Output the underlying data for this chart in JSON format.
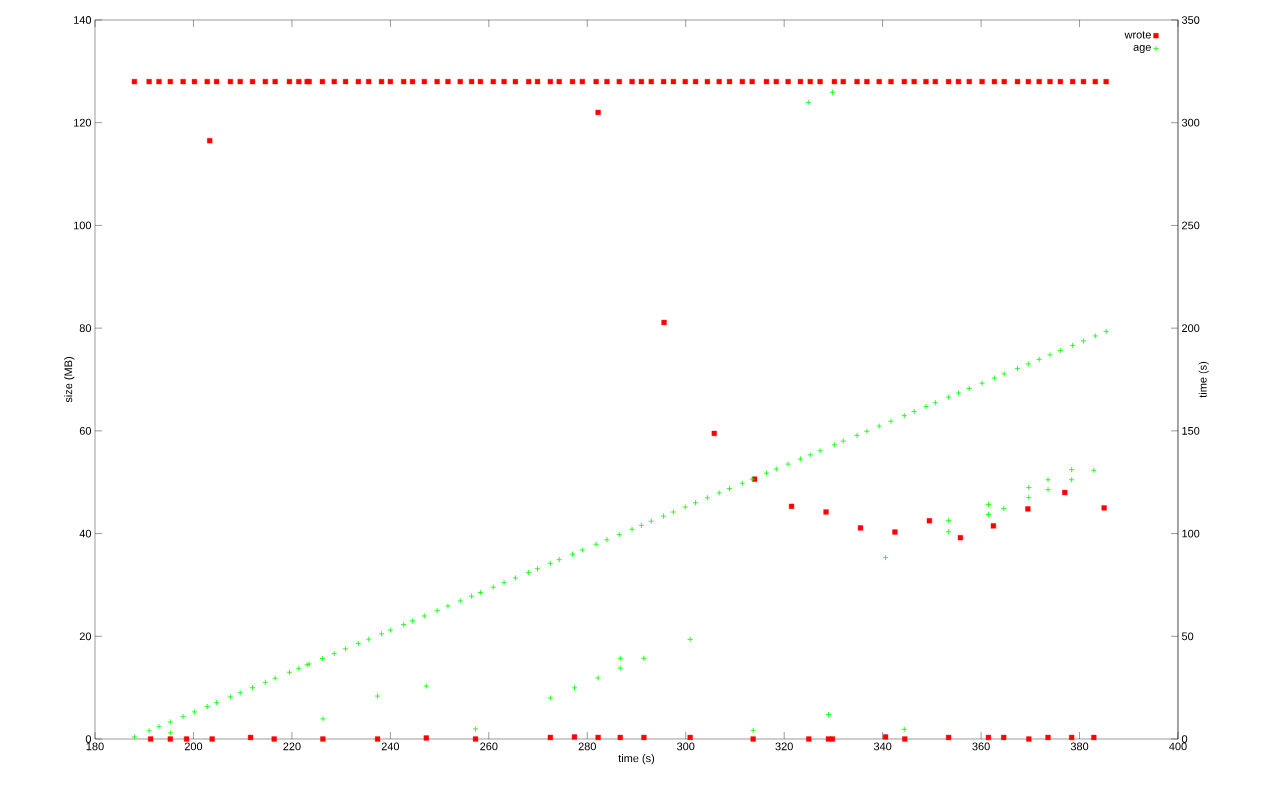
{
  "chart_data": {
    "type": "scatter",
    "xlabel": "time (s)",
    "ylabel": "size (MB)",
    "y2label": "time (s)",
    "xlim": [
      180,
      400
    ],
    "xticks": [
      180,
      200,
      220,
      240,
      260,
      280,
      300,
      320,
      340,
      360,
      380,
      400
    ],
    "ylim": [
      0,
      140
    ],
    "yticks": [
      0,
      20,
      40,
      60,
      80,
      100,
      120,
      140
    ],
    "y2lim": [
      0,
      350
    ],
    "y2ticks": [
      0,
      50,
      100,
      150,
      200,
      250,
      300,
      350
    ],
    "legend": "top right",
    "grid": false,
    "series": [
      {
        "name": "wrote",
        "color": "#ff0000",
        "marker": "square",
        "x": [
          188.0,
          191.0,
          193.0,
          195.3,
          197.9,
          200.2,
          202.8,
          204.7,
          207.5,
          209.5,
          212.0,
          214.6,
          216.6,
          219.5,
          221.4,
          223.1,
          223.5,
          226.2,
          228.6,
          230.9,
          233.5,
          235.6,
          238.2,
          240.0,
          242.7,
          244.5,
          246.9,
          249.5,
          251.7,
          254.2,
          256.5,
          258.3,
          260.9,
          263.1,
          265.4,
          268.1,
          269.9,
          272.5,
          274.3,
          277.0,
          279.0,
          281.8,
          284.0,
          286.5,
          289.1,
          291.0,
          293.0,
          295.5,
          297.5,
          299.9,
          302.0,
          304.4,
          306.8,
          308.9,
          311.5,
          313.5,
          316.4,
          318.4,
          320.8,
          323.3,
          325.3,
          327.3,
          330.2,
          332.0,
          334.8,
          336.8,
          339.3,
          341.7,
          344.4,
          346.4,
          348.8,
          350.7,
          353.4,
          355.4,
          357.6,
          360.2,
          362.7,
          364.7,
          367.4,
          369.6,
          371.8,
          374.0,
          376.1,
          378.6,
          380.8,
          383.2,
          385.4,
          203.3,
          282.2,
          295.6,
          305.8,
          314.0,
          321.5,
          328.5,
          335.5,
          342.5,
          349.5,
          355.8,
          362.5,
          369.5,
          377.0,
          385.0,
          191.3,
          195.3,
          198.6,
          203.8,
          211.6,
          216.4,
          226.3,
          237.4,
          247.3,
          257.3,
          272.5,
          277.4,
          282.2,
          286.7,
          291.5,
          300.9,
          313.7,
          325.0,
          329.0,
          329.8,
          340.6,
          344.5,
          353.4,
          361.5,
          364.6,
          369.7,
          373.6,
          378.4,
          382.9
        ],
        "values": [
          128,
          128,
          128,
          128,
          128,
          128,
          128,
          128,
          128,
          128,
          128,
          128,
          128,
          128,
          128,
          128,
          128,
          128,
          128,
          128,
          128,
          128,
          128,
          128,
          128,
          128,
          128,
          128,
          128,
          128,
          128,
          128,
          128,
          128,
          128,
          128,
          128,
          128,
          128,
          128,
          128,
          128,
          128,
          128,
          128,
          128,
          128,
          128,
          128,
          128,
          128,
          128,
          128,
          128,
          128,
          128,
          128,
          128,
          128,
          128,
          128,
          128,
          128,
          128,
          128,
          128,
          128,
          128,
          128,
          128,
          128,
          128,
          128,
          128,
          128,
          128,
          128,
          128,
          128,
          128,
          128,
          128,
          128,
          128,
          128,
          128,
          128,
          116.5,
          122.0,
          81.1,
          59.5,
          50.6,
          45.3,
          44.2,
          41.1,
          40.3,
          42.5,
          39.2,
          41.5,
          44.8,
          48.0,
          45.0,
          0,
          0,
          0,
          0,
          0.3,
          0,
          0,
          0,
          0.2,
          0,
          0.3,
          0.4,
          0.3,
          0.3,
          0.3,
          0.3,
          0,
          0,
          0,
          0,
          0.4,
          0,
          0.3,
          0.3,
          0.3,
          0,
          0.3,
          0.3,
          0.3
        ]
      },
      {
        "name": "age",
        "color": "#00ff00",
        "marker": "cross",
        "axis": "y2",
        "x": [
          188.0,
          191.0,
          193.0,
          195.3,
          197.9,
          200.2,
          202.8,
          204.7,
          207.5,
          209.5,
          212.0,
          214.6,
          216.6,
          219.5,
          221.4,
          223.1,
          223.5,
          226.2,
          228.6,
          230.9,
          233.5,
          235.6,
          238.2,
          240.0,
          242.7,
          244.5,
          246.9,
          249.5,
          251.7,
          254.2,
          256.5,
          258.3,
          260.9,
          263.1,
          265.4,
          268.1,
          269.9,
          272.5,
          274.3,
          277.0,
          279.0,
          281.8,
          284.0,
          286.5,
          289.1,
          291.0,
          293.0,
          295.5,
          297.5,
          299.9,
          302.0,
          304.4,
          306.8,
          308.9,
          311.5,
          313.5,
          316.4,
          318.4,
          320.8,
          323.3,
          325.3,
          327.3,
          330.2,
          332.0,
          334.8,
          336.8,
          339.3,
          341.7,
          344.4,
          346.4,
          348.8,
          350.7,
          353.4,
          355.4,
          357.6,
          360.2,
          362.7,
          364.7,
          367.4,
          369.6,
          371.8,
          374.0,
          376.1,
          378.6,
          380.8,
          383.2,
          385.4,
          195.3,
          226.3,
          237.4,
          247.3,
          257.3,
          272.5,
          277.4,
          282.2,
          286.7,
          286.7,
          291.5,
          300.9,
          313.7,
          329.0,
          344.4,
          324.9,
          329.8,
          340.6,
          353.4,
          353.4,
          361.5,
          361.5,
          364.6,
          369.7,
          369.7,
          373.6,
          373.6,
          378.4,
          378.4,
          382.9
        ],
        "values": [
          1.0,
          4.0,
          6.0,
          8.3,
          10.9,
          13.2,
          15.8,
          17.7,
          20.5,
          22.5,
          25.0,
          27.6,
          29.6,
          32.5,
          34.4,
          36.1,
          36.5,
          39.2,
          41.6,
          43.9,
          46.5,
          48.6,
          51.2,
          53.0,
          55.7,
          57.5,
          59.9,
          62.5,
          64.7,
          67.2,
          69.5,
          71.3,
          73.9,
          76.1,
          78.4,
          81.1,
          82.9,
          85.5,
          87.3,
          90.0,
          92.0,
          94.8,
          97.0,
          99.5,
          102.1,
          104.0,
          106.0,
          108.5,
          110.5,
          112.9,
          115.0,
          117.4,
          119.8,
          121.9,
          124.5,
          126.5,
          129.4,
          131.4,
          133.8,
          136.3,
          138.3,
          140.3,
          143.2,
          145.0,
          147.8,
          149.8,
          152.3,
          154.7,
          157.4,
          159.4,
          161.8,
          163.7,
          166.4,
          168.4,
          170.6,
          173.2,
          175.7,
          177.7,
          180.4,
          182.6,
          184.8,
          187.0,
          189.1,
          191.6,
          193.8,
          196.2,
          198.4,
          3.0,
          9.8,
          20.9,
          25.8,
          4.9,
          20.0,
          24.9,
          29.7,
          34.5,
          39.3,
          39.3,
          48.5,
          4.2,
          11.9,
          4.7,
          309.9,
          314.8,
          88.3,
          106.3,
          100.9,
          114.2,
          109.3,
          112.2,
          122.4,
          117.5,
          126.2,
          121.4,
          131.1,
          126.2,
          130.8
        ]
      }
    ]
  }
}
